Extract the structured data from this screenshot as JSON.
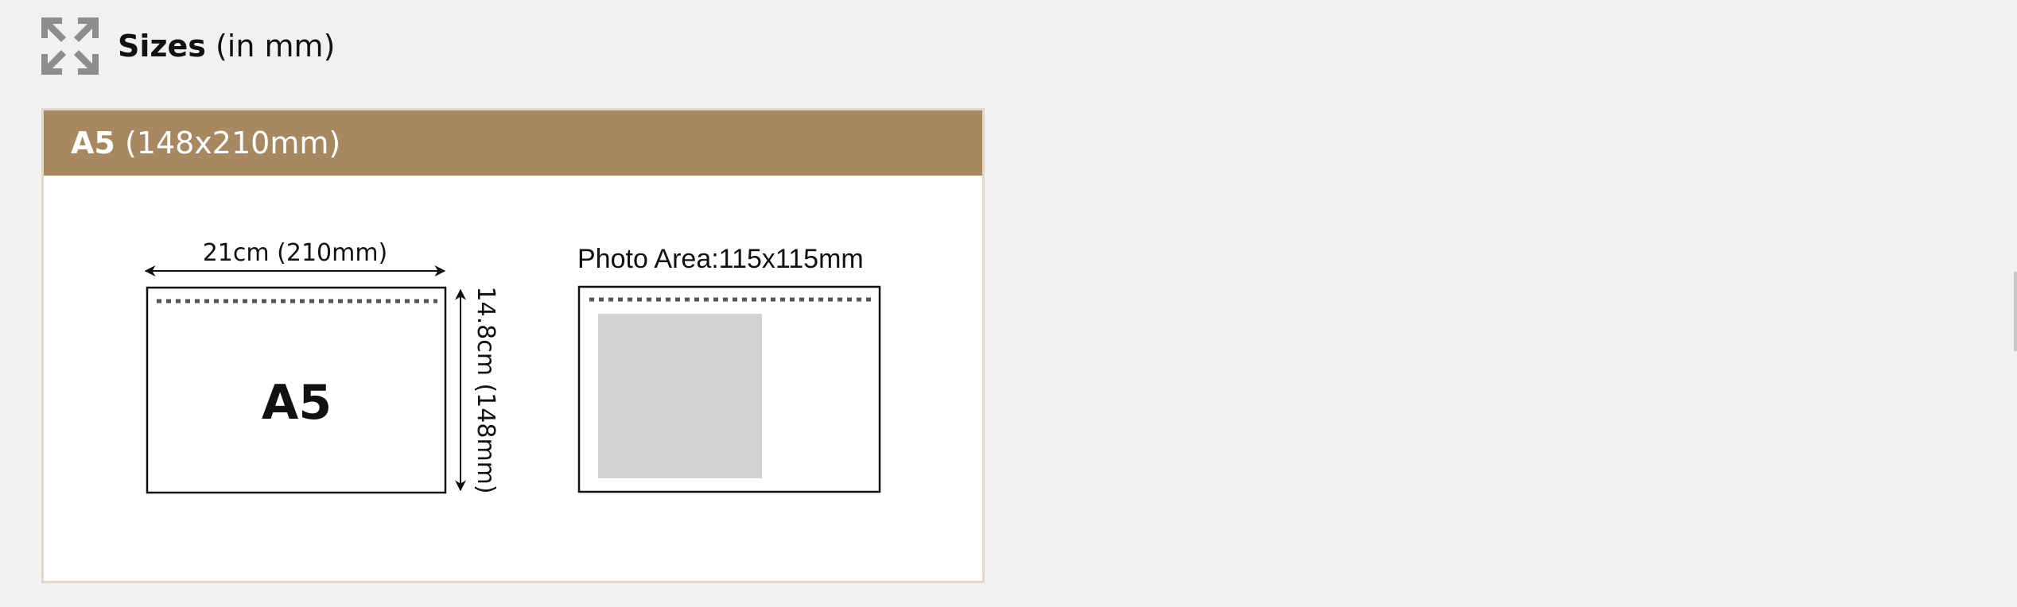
{
  "section": {
    "icon": "expand-arrows-icon",
    "title_strong": "Sizes",
    "title_rest": " (in mm)"
  },
  "card": {
    "title_strong": "A5",
    "title_rest": " (148x210mm)"
  },
  "diagram": {
    "width_label": "21cm (210mm)",
    "height_label": "14.8cm (148mm)",
    "format_label": "A5",
    "photo_area_label": "Photo Area:115x115mm"
  },
  "colors": {
    "page_bg": "#f0f1f3",
    "header_bg": "#a78860",
    "card_border": "#e3d8c8",
    "photo_fill": "#d1d2d4",
    "icon": "#8e8e8e"
  }
}
